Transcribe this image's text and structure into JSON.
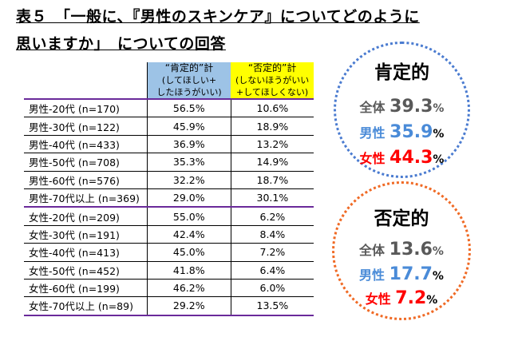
{
  "title": {
    "line1": "表５　「一般に、『男性のスキンケア』についてどのように",
    "line2": "思いますか」　についての回答"
  },
  "table": {
    "header": {
      "col1_main": "“肯定的”計",
      "col1_sub1": "(してほしい+",
      "col1_sub2": "したほうがいい)",
      "col2_main": "“否定的”計",
      "col2_sub1": "(しないほうがいい",
      "col2_sub2": "+してほしくない)"
    },
    "rows": [
      {
        "label": "男性-20代 (n=170)",
        "positive": "56.5%",
        "negative": "10.6%"
      },
      {
        "label": "男性-30代 (n=122)",
        "positive": "45.9%",
        "negative": "18.9%"
      },
      {
        "label": "男性-40代 (n=433)",
        "positive": "36.9%",
        "negative": "13.2%"
      },
      {
        "label": "男性-50代 (n=708)",
        "positive": "35.3%",
        "negative": "14.9%"
      },
      {
        "label": "男性-60代 (n=576)",
        "positive": "32.2%",
        "negative": "18.7%"
      },
      {
        "label": "男性-70代以上 (n=369)",
        "positive": "29.0%",
        "negative": "30.1%"
      },
      {
        "label": "女性-20代 (n=209)",
        "positive": "55.0%",
        "negative": "6.2%"
      },
      {
        "label": "女性-30代 (n=191)",
        "positive": "42.4%",
        "negative": "8.4%"
      },
      {
        "label": "女性-40代 (n=413)",
        "positive": "45.0%",
        "negative": "7.2%"
      },
      {
        "label": "女性-50代 (n=452)",
        "positive": "41.8%",
        "negative": "6.4%"
      },
      {
        "label": "女性-60代 (n=199)",
        "positive": "46.2%",
        "negative": "6.0%"
      },
      {
        "label": "女性-70代以上 (n=89)",
        "positive": "29.2%",
        "negative": "13.5%"
      }
    ]
  },
  "summary": {
    "positive": {
      "title": "肯定的",
      "total_label": "全体",
      "total_value": "39.3",
      "total_unit": "%",
      "male_label": "男性",
      "male_value": "35.9",
      "male_unit": "%",
      "female_label": "女性",
      "female_value": "44.3",
      "female_unit": "%"
    },
    "negative": {
      "title": "否定的",
      "total_label": "全体",
      "total_value": "13.6",
      "total_unit": "%",
      "male_label": "男性",
      "male_value": "17.7",
      "male_unit": "%",
      "female_label": "女性",
      "female_value": "7.2",
      "female_unit": "%"
    }
  },
  "colors": {
    "positive_header": "#9dc3e6",
    "negative_header": "#ffff00",
    "positive_circle": "#4a7bd0",
    "negative_circle": "#f06a25",
    "male": "#4a8bd8",
    "female": "#ff0000",
    "total": "#595959",
    "separator": "#6a2a9a"
  },
  "chart_data": {
    "type": "table",
    "title": "表５　「一般に、『男性のスキンケア』についてどのように思いますか」　についての回答",
    "columns": [
      "“肯定的”計 (してほしい+したほうがいい)",
      "“否定的”計 (しないほうがいい+してほしくない)"
    ],
    "rows": [
      {
        "label": "男性-20代 (n=170)",
        "values": [
          56.5,
          10.6
        ]
      },
      {
        "label": "男性-30代 (n=122)",
        "values": [
          45.9,
          18.9
        ]
      },
      {
        "label": "男性-40代 (n=433)",
        "values": [
          36.9,
          13.2
        ]
      },
      {
        "label": "男性-50代 (n=708)",
        "values": [
          35.3,
          14.9
        ]
      },
      {
        "label": "男性-60代 (n=576)",
        "values": [
          32.2,
          18.7
        ]
      },
      {
        "label": "男性-70代以上 (n=369)",
        "values": [
          29.0,
          30.1
        ]
      },
      {
        "label": "女性-20代 (n=209)",
        "values": [
          55.0,
          6.2
        ]
      },
      {
        "label": "女性-30代 (n=191)",
        "values": [
          42.4,
          8.4
        ]
      },
      {
        "label": "女性-40代 (n=413)",
        "values": [
          45.0,
          7.2
        ]
      },
      {
        "label": "女性-50代 (n=452)",
        "values": [
          41.8,
          6.4
        ]
      },
      {
        "label": "女性-60代 (n=199)",
        "values": [
          46.2,
          6.0
        ]
      },
      {
        "label": "女性-70代以上 (n=89)",
        "values": [
          29.2,
          13.5
        ]
      }
    ],
    "summary": {
      "肯定的": {
        "全体": 39.3,
        "男性": 35.9,
        "女性": 44.3
      },
      "否定的": {
        "全体": 13.6,
        "男性": 17.7,
        "女性": 7.2
      }
    }
  }
}
